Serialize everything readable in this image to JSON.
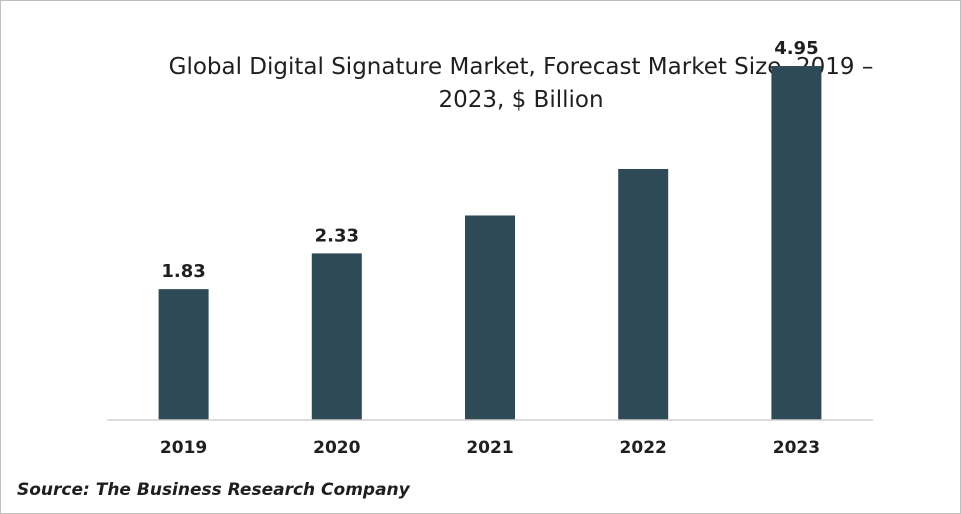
{
  "chart_data": {
    "type": "bar",
    "title": "Global Digital Signature Market, Forecast Market Size, 2019 – 2023, $ Billion",
    "categories": [
      "2019",
      "2020",
      "2021",
      "2022",
      "2023"
    ],
    "values": [
      1.83,
      2.33,
      2.86,
      3.51,
      4.95
    ],
    "data_labels": [
      "1.83",
      "2.33",
      "",
      "",
      "4.95"
    ],
    "xlabel": "",
    "ylabel": "",
    "ylim": [
      0,
      5.3
    ],
    "grid": false,
    "legend": "none",
    "bar_color": "#2e4a57"
  },
  "source": "Source: The Business Research Company"
}
